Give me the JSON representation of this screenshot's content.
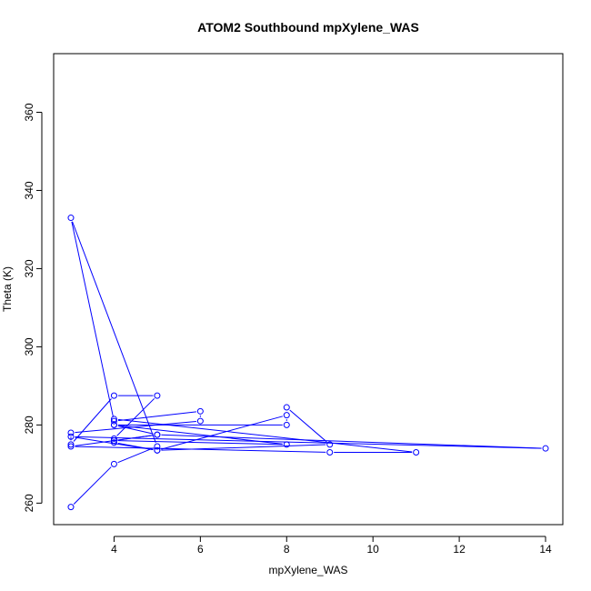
{
  "chart_data": {
    "type": "line",
    "title": "ATOM2 Southbound mpXylene_WAS",
    "xlabel": "mpXylene_WAS",
    "ylabel": "Theta (K)",
    "xlim": [
      2.6,
      14.4
    ],
    "ylim": [
      254.5,
      375
    ],
    "xticks": [
      4,
      6,
      8,
      10,
      12,
      14
    ],
    "yticks": [
      260,
      280,
      300,
      320,
      340,
      360
    ],
    "grid": false,
    "line_color": "#0000ff",
    "marker": "open-circle",
    "series": [
      {
        "name": "",
        "x": [
          3,
          4,
          5,
          3,
          4,
          6,
          6,
          3,
          3,
          4,
          5,
          4,
          4,
          5,
          8,
          8,
          4,
          5,
          3,
          9,
          11,
          4,
          4,
          8,
          4,
          5,
          14,
          3,
          5,
          9,
          8
        ],
        "y": [
          259,
          270,
          274.5,
          333,
          281,
          283.5,
          281,
          278,
          275,
          287.5,
          287.5,
          276.5,
          275.5,
          273.5,
          282.5,
          280,
          280,
          277.5,
          274.5,
          273,
          273,
          281.5,
          280,
          275,
          276,
          277.5,
          274,
          277,
          273.5,
          275,
          284.5
        ]
      }
    ]
  }
}
